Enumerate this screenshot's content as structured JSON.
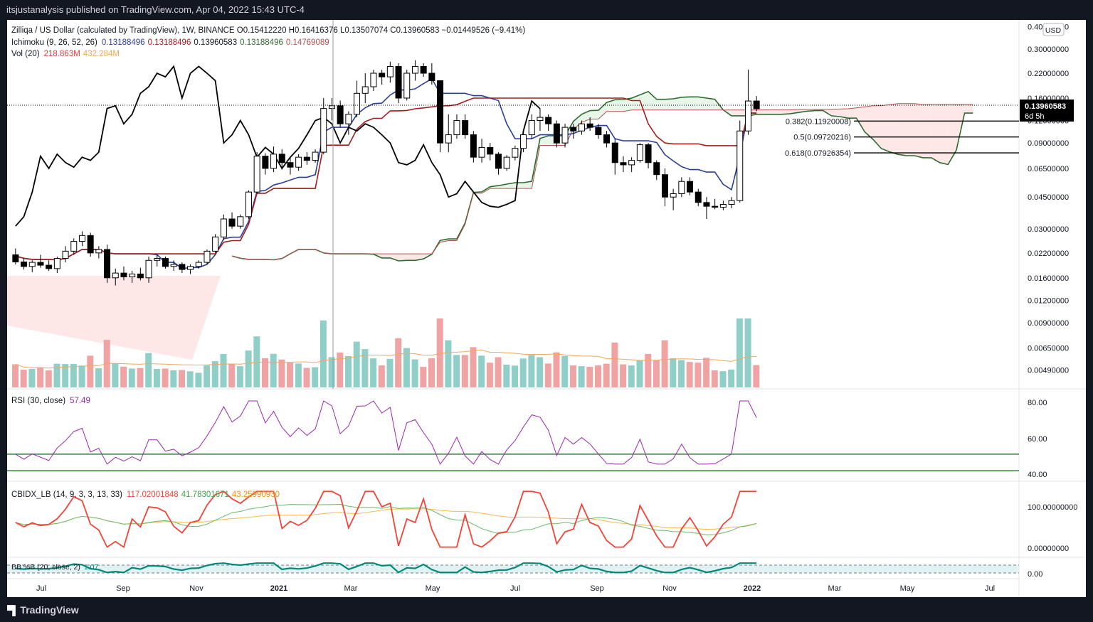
{
  "header": {
    "publisher_line": "itsjustanalysis published on TradingView.com, Apr 04, 2022 15:43 UTC-4"
  },
  "footer": {
    "brand": "TradingView"
  },
  "legend": {
    "symbol_line": "Zilliqa / US Dollar (calculated by TradingView), 1W, BINANCE  O0.15412220  H0.16416376  L0.13507074  C0.13960583  −0.01449526 (−9.41%)",
    "ichimoku_name": "Ichimoku (9, 26, 52, 26)",
    "ichimoku_values": [
      "0.13188496",
      "0.13188496",
      "0.13960583",
      "0.13188496",
      "0.14769089"
    ],
    "vol_name": "Vol (20)",
    "vol_values": [
      "218.863M",
      "432.284M"
    ],
    "rsi_name": "RSI (30, close)",
    "rsi_value": "57.49",
    "cbidx_name": "CBIDX_LB (14, 9, 3, 3, 13, 33)",
    "cbidx_values": [
      "117.02001848",
      "41.78301671",
      "43.25990930"
    ],
    "bb_name": "BB %B (20, close, 2)",
    "bb_value": "1.07"
  },
  "colors": {
    "up": "#ffffff",
    "down": "#000000",
    "tenkan": "#2a3f9d",
    "kijun": "#a31d1d",
    "lagging": "#000000",
    "span_a": "#2e6b2e",
    "span_b": "#b55050",
    "cloud_bull": "#e8f5e9",
    "cloud_bear": "#fde7e7",
    "vol_up": "#8fcfc8",
    "vol_down": "#f0a3a3",
    "vol_ma": "#f5a65b",
    "rsi": "#9c27b0",
    "rsi_level": "#2e7d32",
    "cb_main": "#f44336",
    "cb_fast": "#66bb6a",
    "cb_slow": "#ffb74d",
    "bb": "#00897b"
  },
  "price_axis": {
    "currency_label": "USD",
    "ticks": [
      "0.40000000",
      "0.30000000",
      "0.22000000",
      "0.16000000",
      "0.12000000",
      "0.09000000",
      "0.06500000",
      "0.04500000",
      "0.03000000",
      "0.02200000",
      "0.01600000",
      "0.01200000",
      "0.00900000",
      "0.00650000",
      "0.00490000"
    ],
    "current_price_label": "0.13960583",
    "countdown_label": "6d 5h"
  },
  "rsi_axis": {
    "ticks": [
      "80.00",
      "60.00",
      "40.00"
    ]
  },
  "cbidx_axis": {
    "ticks": [
      "100.00000000",
      "0.00000000"
    ]
  },
  "bb_axis": {
    "ticks": [
      "0.00"
    ]
  },
  "time_axis": {
    "ticks": [
      "Jul",
      "Sep",
      "Nov",
      "2021",
      "Mar",
      "May",
      "Jul",
      "Sep",
      "Nov",
      "2022",
      "Mar",
      "May",
      "Jul"
    ]
  },
  "fib_labels": [
    "0.382(0.11920008)",
    "0.5(0.09720216)",
    "0.618(0.07926354)"
  ],
  "chart_data": {
    "type": "candlestick",
    "title": "Zilliqa / US Dollar (calculated by TradingView), 1W, BINANCE",
    "scale": "log",
    "ylim": [
      0.004,
      0.42
    ],
    "timeframe": "1W",
    "x_range": [
      "2020-06-01",
      "2022-08-01"
    ],
    "candles_ohlc": [
      [
        0.0215,
        0.0233,
        0.019,
        0.0196
      ],
      [
        0.0196,
        0.0205,
        0.0178,
        0.0185
      ],
      [
        0.0185,
        0.02,
        0.0172,
        0.0195
      ],
      [
        0.0195,
        0.0215,
        0.0182,
        0.0188
      ],
      [
        0.0188,
        0.02,
        0.0175,
        0.018
      ],
      [
        0.018,
        0.021,
        0.017,
        0.0205
      ],
      [
        0.0205,
        0.024,
        0.0195,
        0.0225
      ],
      [
        0.0225,
        0.0265,
        0.0215,
        0.0255
      ],
      [
        0.0255,
        0.029,
        0.024,
        0.0275
      ],
      [
        0.0275,
        0.0285,
        0.021,
        0.022
      ],
      [
        0.022,
        0.024,
        0.0205,
        0.023
      ],
      [
        0.023,
        0.0245,
        0.015,
        0.016
      ],
      [
        0.016,
        0.018,
        0.0145,
        0.017
      ],
      [
        0.017,
        0.0185,
        0.0155,
        0.0162
      ],
      [
        0.0162,
        0.0175,
        0.015,
        0.0168
      ],
      [
        0.0168,
        0.0182,
        0.0155,
        0.016
      ],
      [
        0.016,
        0.021,
        0.015,
        0.02
      ],
      [
        0.02,
        0.0215,
        0.0185,
        0.0205
      ],
      [
        0.0205,
        0.021,
        0.018,
        0.0185
      ],
      [
        0.0185,
        0.02,
        0.0175,
        0.019
      ],
      [
        0.019,
        0.0195,
        0.017,
        0.0178
      ],
      [
        0.0178,
        0.019,
        0.0168,
        0.0185
      ],
      [
        0.0185,
        0.02,
        0.018,
        0.0195
      ],
      [
        0.0195,
        0.023,
        0.019,
        0.0225
      ],
      [
        0.0225,
        0.028,
        0.022,
        0.027
      ],
      [
        0.027,
        0.036,
        0.026,
        0.034
      ],
      [
        0.034,
        0.037,
        0.03,
        0.031
      ],
      [
        0.031,
        0.036,
        0.03,
        0.035
      ],
      [
        0.035,
        0.049,
        0.034,
        0.048
      ],
      [
        0.048,
        0.08,
        0.047,
        0.076
      ],
      [
        0.076,
        0.079,
        0.06,
        0.065
      ],
      [
        0.065,
        0.086,
        0.062,
        0.078
      ],
      [
        0.078,
        0.083,
        0.064,
        0.07
      ],
      [
        0.07,
        0.075,
        0.06,
        0.066
      ],
      [
        0.066,
        0.078,
        0.063,
        0.075
      ],
      [
        0.075,
        0.08,
        0.068,
        0.072
      ],
      [
        0.072,
        0.083,
        0.07,
        0.08
      ],
      [
        0.08,
        0.16,
        0.078,
        0.14
      ],
      [
        0.14,
        0.16,
        0.12,
        0.145
      ],
      [
        0.145,
        0.155,
        0.11,
        0.115
      ],
      [
        0.115,
        0.135,
        0.1,
        0.13
      ],
      [
        0.13,
        0.2,
        0.125,
        0.17
      ],
      [
        0.17,
        0.22,
        0.15,
        0.185
      ],
      [
        0.185,
        0.23,
        0.175,
        0.22
      ],
      [
        0.22,
        0.23,
        0.19,
        0.21
      ],
      [
        0.21,
        0.255,
        0.195,
        0.24
      ],
      [
        0.24,
        0.25,
        0.15,
        0.16
      ],
      [
        0.16,
        0.23,
        0.155,
        0.22
      ],
      [
        0.22,
        0.26,
        0.2,
        0.24
      ],
      [
        0.24,
        0.25,
        0.21,
        0.22
      ],
      [
        0.22,
        0.25,
        0.19,
        0.2
      ],
      [
        0.2,
        0.17,
        0.08,
        0.09
      ],
      [
        0.09,
        0.13,
        0.08,
        0.1
      ],
      [
        0.1,
        0.13,
        0.095,
        0.12
      ],
      [
        0.12,
        0.13,
        0.095,
        0.1
      ],
      [
        0.1,
        0.105,
        0.07,
        0.075
      ],
      [
        0.075,
        0.095,
        0.07,
        0.085
      ],
      [
        0.085,
        0.09,
        0.072,
        0.078
      ],
      [
        0.078,
        0.08,
        0.06,
        0.065
      ],
      [
        0.065,
        0.077,
        0.063,
        0.075
      ],
      [
        0.075,
        0.087,
        0.072,
        0.084
      ],
      [
        0.084,
        0.105,
        0.08,
        0.1
      ],
      [
        0.1,
        0.13,
        0.095,
        0.12
      ],
      [
        0.12,
        0.14,
        0.105,
        0.125
      ],
      [
        0.125,
        0.13,
        0.105,
        0.115
      ],
      [
        0.115,
        0.12,
        0.085,
        0.09
      ],
      [
        0.09,
        0.115,
        0.085,
        0.11
      ],
      [
        0.11,
        0.115,
        0.095,
        0.105
      ],
      [
        0.105,
        0.12,
        0.1,
        0.115
      ],
      [
        0.115,
        0.125,
        0.105,
        0.11
      ],
      [
        0.11,
        0.115,
        0.095,
        0.1
      ],
      [
        0.1,
        0.105,
        0.085,
        0.09
      ],
      [
        0.09,
        0.095,
        0.06,
        0.07
      ],
      [
        0.07,
        0.076,
        0.062,
        0.068
      ],
      [
        0.068,
        0.075,
        0.062,
        0.072
      ],
      [
        0.072,
        0.09,
        0.07,
        0.088
      ],
      [
        0.088,
        0.09,
        0.065,
        0.07
      ],
      [
        0.07,
        0.072,
        0.056,
        0.06
      ],
      [
        0.06,
        0.065,
        0.04,
        0.045
      ],
      [
        0.045,
        0.05,
        0.038,
        0.047
      ],
      [
        0.047,
        0.058,
        0.045,
        0.055
      ],
      [
        0.055,
        0.058,
        0.046,
        0.048
      ],
      [
        0.048,
        0.05,
        0.04,
        0.042
      ],
      [
        0.042,
        0.045,
        0.034,
        0.04
      ],
      [
        0.04,
        0.044,
        0.0385,
        0.0395
      ],
      [
        0.0395,
        0.043,
        0.038,
        0.041
      ],
      [
        0.041,
        0.045,
        0.039,
        0.043
      ],
      [
        0.043,
        0.12,
        0.042,
        0.105
      ],
      [
        0.105,
        0.23,
        0.1,
        0.1541
      ],
      [
        0.1541,
        0.1642,
        0.1351,
        0.1396
      ]
    ],
    "fib_levels": [
      {
        "ratio": 0.382,
        "value": 0.11920008
      },
      {
        "ratio": 0.5,
        "value": 0.09720216
      },
      {
        "ratio": 0.618,
        "value": 0.07926354
      }
    ],
    "rsi": {
      "ylim": [
        35,
        88
      ],
      "levels": [
        50,
        40
      ],
      "last": 57.49
    },
    "cbidx": {
      "series": [
        "117.02001848",
        "41.78301671",
        "43.25990930"
      ]
    },
    "bb_percent_b": {
      "last": 1.07
    }
  }
}
